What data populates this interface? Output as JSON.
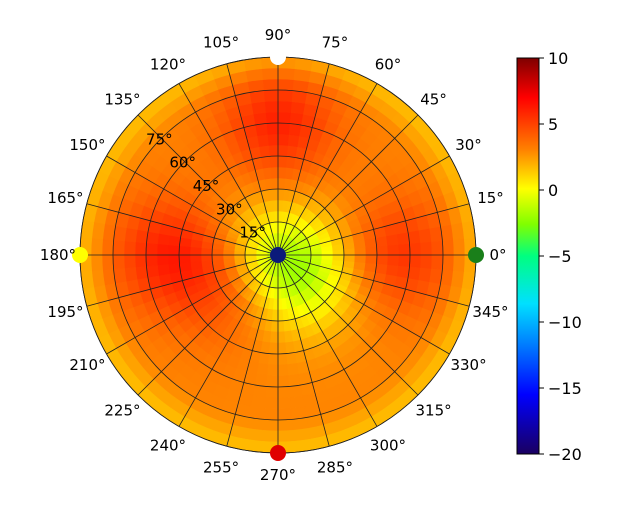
{
  "chart_data": {
    "type": "heatmap",
    "projection": "polar",
    "title": "",
    "grid": true,
    "angular_ticks": [
      "0°",
      "15°",
      "30°",
      "45°",
      "60°",
      "75°",
      "90°",
      "105°",
      "120°",
      "135°",
      "150°",
      "165°",
      "180°",
      "195°",
      "210°",
      "225°",
      "240°",
      "255°",
      "270°",
      "285°",
      "300°",
      "315°",
      "330°",
      "345°"
    ],
    "radial_ticks": [
      "15°",
      "30°",
      "45°",
      "60°",
      "75°"
    ],
    "radial_label_angle_deg": 135,
    "radial_range_deg": [
      0,
      90
    ],
    "colorbar": {
      "range": [
        -20,
        10
      ],
      "ticks": [
        "10",
        "5",
        "0",
        "−5",
        "−10",
        "−15",
        "−20"
      ],
      "colormap": "jet-like (dark blue → blue → cyan → green → yellow → orange → red → dark red)",
      "placement": "right"
    },
    "markers": [
      {
        "azimuth_deg": 90,
        "color": "#ffffff"
      },
      {
        "azimuth_deg": 0,
        "color": "#1a7f1a"
      },
      {
        "azimuth_deg": 180,
        "color": "#ffff00"
      },
      {
        "azimuth_deg": 270,
        "color": "#e00000"
      },
      {
        "azimuth_deg": null,
        "position": "center",
        "color": "#0b1a7a"
      }
    ],
    "gain_pattern_description": {
      "background_level": 3,
      "hotspots": [
        {
          "azimuth_deg": 90,
          "elevation_deg": 60,
          "level": 6
        },
        {
          "azimuth_deg": 180,
          "elevation_deg": 50,
          "level": 6
        },
        {
          "azimuth_deg": 0,
          "elevation_deg": 55,
          "level": 5.5
        },
        {
          "azimuth_deg": 215,
          "elevation_deg": 25,
          "level": 5
        }
      ],
      "low_regions": [
        {
          "azimuth_deg": 318,
          "elevation_deg": 15,
          "level": -1
        },
        {
          "azimuth_deg": 160,
          "elevation_deg": 5,
          "level": 0.5
        }
      ]
    }
  }
}
